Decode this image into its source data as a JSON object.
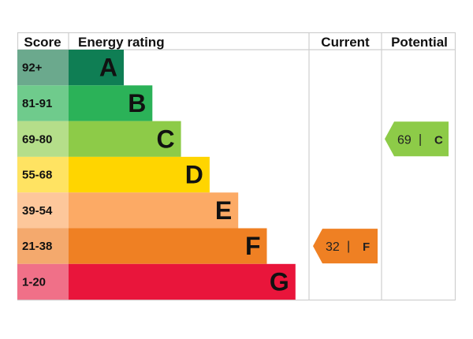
{
  "chart_data": {
    "type": "bar",
    "headers": {
      "score": "Score",
      "rating": "Energy rating",
      "current": "Current",
      "potential": "Potential"
    },
    "bands": [
      {
        "band": "A",
        "range": "92+",
        "color": "#0f7e54",
        "score_color": "#6ba98d"
      },
      {
        "band": "B",
        "range": "81-91",
        "color": "#2bb258",
        "score_color": "#6fcb8c"
      },
      {
        "band": "C",
        "range": "69-80",
        "color": "#8dcb48",
        "score_color": "#b5de8a"
      },
      {
        "band": "D",
        "range": "55-68",
        "color": "#ffd500",
        "score_color": "#ffe362"
      },
      {
        "band": "E",
        "range": "39-54",
        "color": "#fcaa65",
        "score_color": "#fdc79b"
      },
      {
        "band": "F",
        "range": "21-38",
        "color": "#ef8023",
        "score_color": "#f4a96d"
      },
      {
        "band": "G",
        "range": "1-20",
        "color": "#e9153b",
        "score_color": "#f07088"
      }
    ],
    "current": {
      "value": 32,
      "band": "F",
      "separator": "|",
      "color": "#ef8023"
    },
    "potential": {
      "value": 69,
      "band": "C",
      "separator": "|",
      "color": "#8dcb48"
    },
    "grid_color": "#cfcfcf"
  }
}
